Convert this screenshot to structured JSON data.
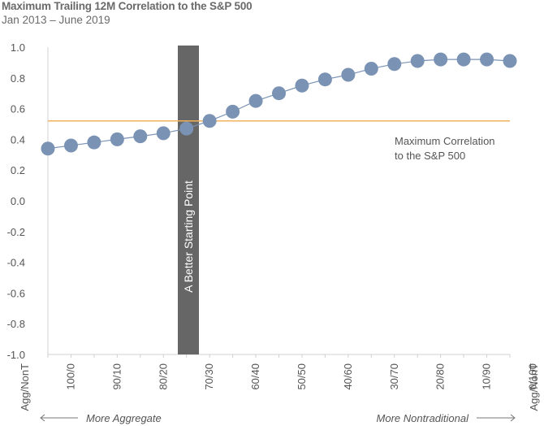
{
  "chart_data": {
    "type": "line",
    "title": "Maximum Trailing 12M Correlation to the S&P 500",
    "subtitle": "Jan 2013 – June 2019",
    "ylim": [
      -1.0,
      1.0
    ],
    "yticks": [
      "1.0",
      "0.8",
      "0.6",
      "0.4",
      "0.2",
      "0.0",
      "-0.2",
      "-0.4",
      "-0.6",
      "-0.8",
      "-1.0"
    ],
    "ytick_values": [
      1.0,
      0.8,
      0.6,
      0.4,
      0.2,
      0.0,
      -0.2,
      -0.4,
      -0.6,
      -0.8,
      -1.0
    ],
    "x_tick_labels": [
      "100/0",
      "90/10",
      "80/20",
      "70/30",
      "60/40",
      "50/50",
      "40/60",
      "30/70",
      "20/80",
      "10/90",
      "0/100"
    ],
    "x_start_label": "Agg/NonT",
    "x_end_label": "Agg/NonT",
    "series": [
      {
        "name": "Maximum Trailing 12M Correlation",
        "color": "#7a92b3",
        "values": [
          0.34,
          0.36,
          0.38,
          0.4,
          0.42,
          0.44,
          0.47,
          0.52,
          0.58,
          0.65,
          0.7,
          0.75,
          0.79,
          0.82,
          0.86,
          0.89,
          0.91,
          0.92,
          0.92,
          0.92,
          0.91
        ]
      }
    ],
    "reference_line": {
      "value": 0.52,
      "label_line1": "Maximum Correlation",
      "label_line2": "to the S&P 500",
      "color": "#f2b15c"
    },
    "highlight_band": {
      "x_from": 70,
      "x_to": 68.5,
      "label": "A Better Starting Point",
      "color": "#666666"
    },
    "direction_left": "More Aggregate",
    "direction_right": "More Nontraditional",
    "grid": false
  }
}
